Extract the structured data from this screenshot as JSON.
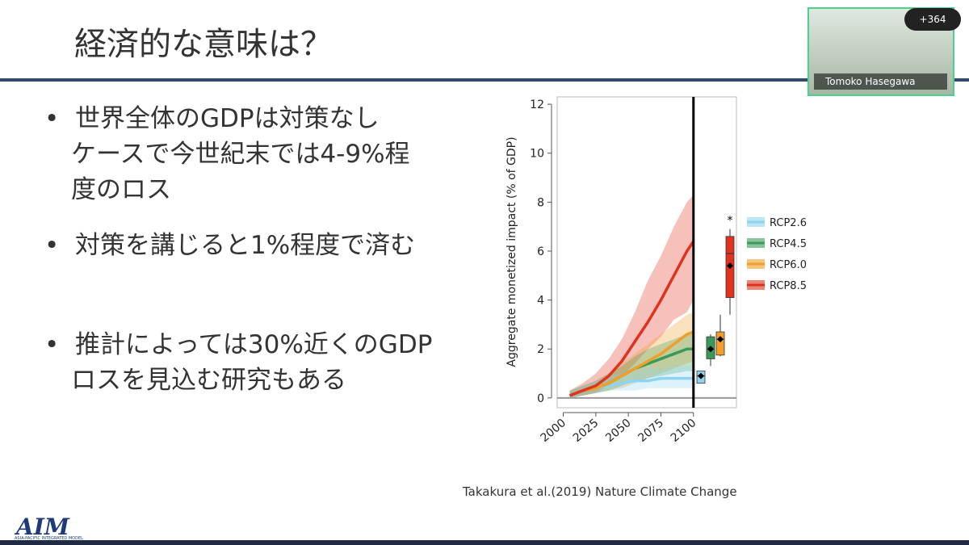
{
  "slide": {
    "title": "経済的な意味は？",
    "bullets": [
      "世界全体のGDPは対策なし",
      "ケースで今世紀末では4-9%程",
      "度のロス",
      "対策を講じると1%程度で済む",
      "推計によっては30%近くのGDP",
      "ロスを見込む研究もある"
    ],
    "citation": "Takakura et al.(2019) Nature Climate Change",
    "logo": "AIM",
    "logo_sub": "ASIA-PACIFIC INTEGRATED MODEL"
  },
  "video": {
    "participants": "+364",
    "name": "Tomoko Hasegawa"
  },
  "chart_data": {
    "type": "line",
    "y_label": "Aggregate monetized impact (% of GDP)",
    "x": [
      2005,
      2015,
      2025,
      2035,
      2045,
      2055,
      2065,
      2075,
      2085,
      2095,
      2100
    ],
    "xlim": [
      1991,
      2133
    ],
    "xticks": [
      2000,
      2025,
      2050,
      2075,
      2100
    ],
    "ylim": [
      -0.4,
      12.3
    ],
    "yticks": [
      0,
      2,
      4,
      6,
      8,
      10,
      12
    ],
    "vline": 2100,
    "hline": 0,
    "annotation": "*",
    "series": [
      {
        "name": "RCP2.6",
        "color": "#8fd3f0",
        "values": [
          0.1,
          0.3,
          0.4,
          0.5,
          0.6,
          0.7,
          0.7,
          0.8,
          0.8,
          0.8,
          0.8
        ],
        "lower": [
          0,
          0.1,
          0.2,
          0.3,
          0.3,
          0.3,
          0.4,
          0.4,
          0.4,
          0.4,
          0.4
        ],
        "upper": [
          0.3,
          0.5,
          0.7,
          0.9,
          1.0,
          1.1,
          1.2,
          1.2,
          1.3,
          1.3,
          1.3
        ]
      },
      {
        "name": "RCP4.5",
        "color": "#3a9a5b",
        "values": [
          0.1,
          0.3,
          0.4,
          0.6,
          0.9,
          1.2,
          1.4,
          1.6,
          1.8,
          2.0,
          2.0
        ],
        "lower": [
          0,
          0.1,
          0.2,
          0.3,
          0.5,
          0.7,
          0.8,
          0.9,
          1.0,
          1.1,
          1.1
        ],
        "upper": [
          0.3,
          0.5,
          0.7,
          1.0,
          1.3,
          1.7,
          2.0,
          2.2,
          2.4,
          2.6,
          2.7
        ]
      },
      {
        "name": "RCP6.0",
        "color": "#f0a028",
        "values": [
          0.1,
          0.3,
          0.4,
          0.6,
          0.9,
          1.2,
          1.5,
          1.8,
          2.2,
          2.6,
          2.7
        ],
        "lower": [
          0,
          0.1,
          0.2,
          0.3,
          0.4,
          0.6,
          0.8,
          1.0,
          1.2,
          1.4,
          1.5
        ],
        "upper": [
          0.3,
          0.5,
          0.7,
          1.0,
          1.4,
          1.8,
          2.2,
          2.6,
          3.0,
          3.4,
          3.5
        ]
      },
      {
        "name": "RCP8.5",
        "color": "#e0321e",
        "values": [
          0.1,
          0.3,
          0.5,
          0.9,
          1.5,
          2.3,
          3.1,
          4.0,
          5.0,
          6.0,
          6.4
        ],
        "lower": [
          0,
          0.1,
          0.2,
          0.5,
          0.9,
          1.4,
          2.0,
          2.5,
          3.2,
          3.5,
          4.0
        ],
        "upper": [
          0.3,
          0.6,
          1.0,
          1.6,
          2.4,
          3.5,
          4.8,
          5.8,
          7.0,
          8.0,
          8.3
        ]
      }
    ],
    "boxes": [
      {
        "min": 0.6,
        "q1": 0.6,
        "median": 0.9,
        "q3": 1.1,
        "max": 1.1,
        "mean": 0.9
      },
      {
        "min": 1.3,
        "q1": 1.6,
        "median": 2.0,
        "q3": 2.5,
        "max": 2.6,
        "mean": 2.0
      },
      {
        "min": 1.7,
        "q1": 1.75,
        "median": 2.4,
        "q3": 2.7,
        "max": 3.4,
        "mean": 2.4
      },
      {
        "min": 3.4,
        "q1": 4.1,
        "median": 5.9,
        "q3": 6.6,
        "max": 6.9,
        "mean": 5.4
      }
    ]
  }
}
